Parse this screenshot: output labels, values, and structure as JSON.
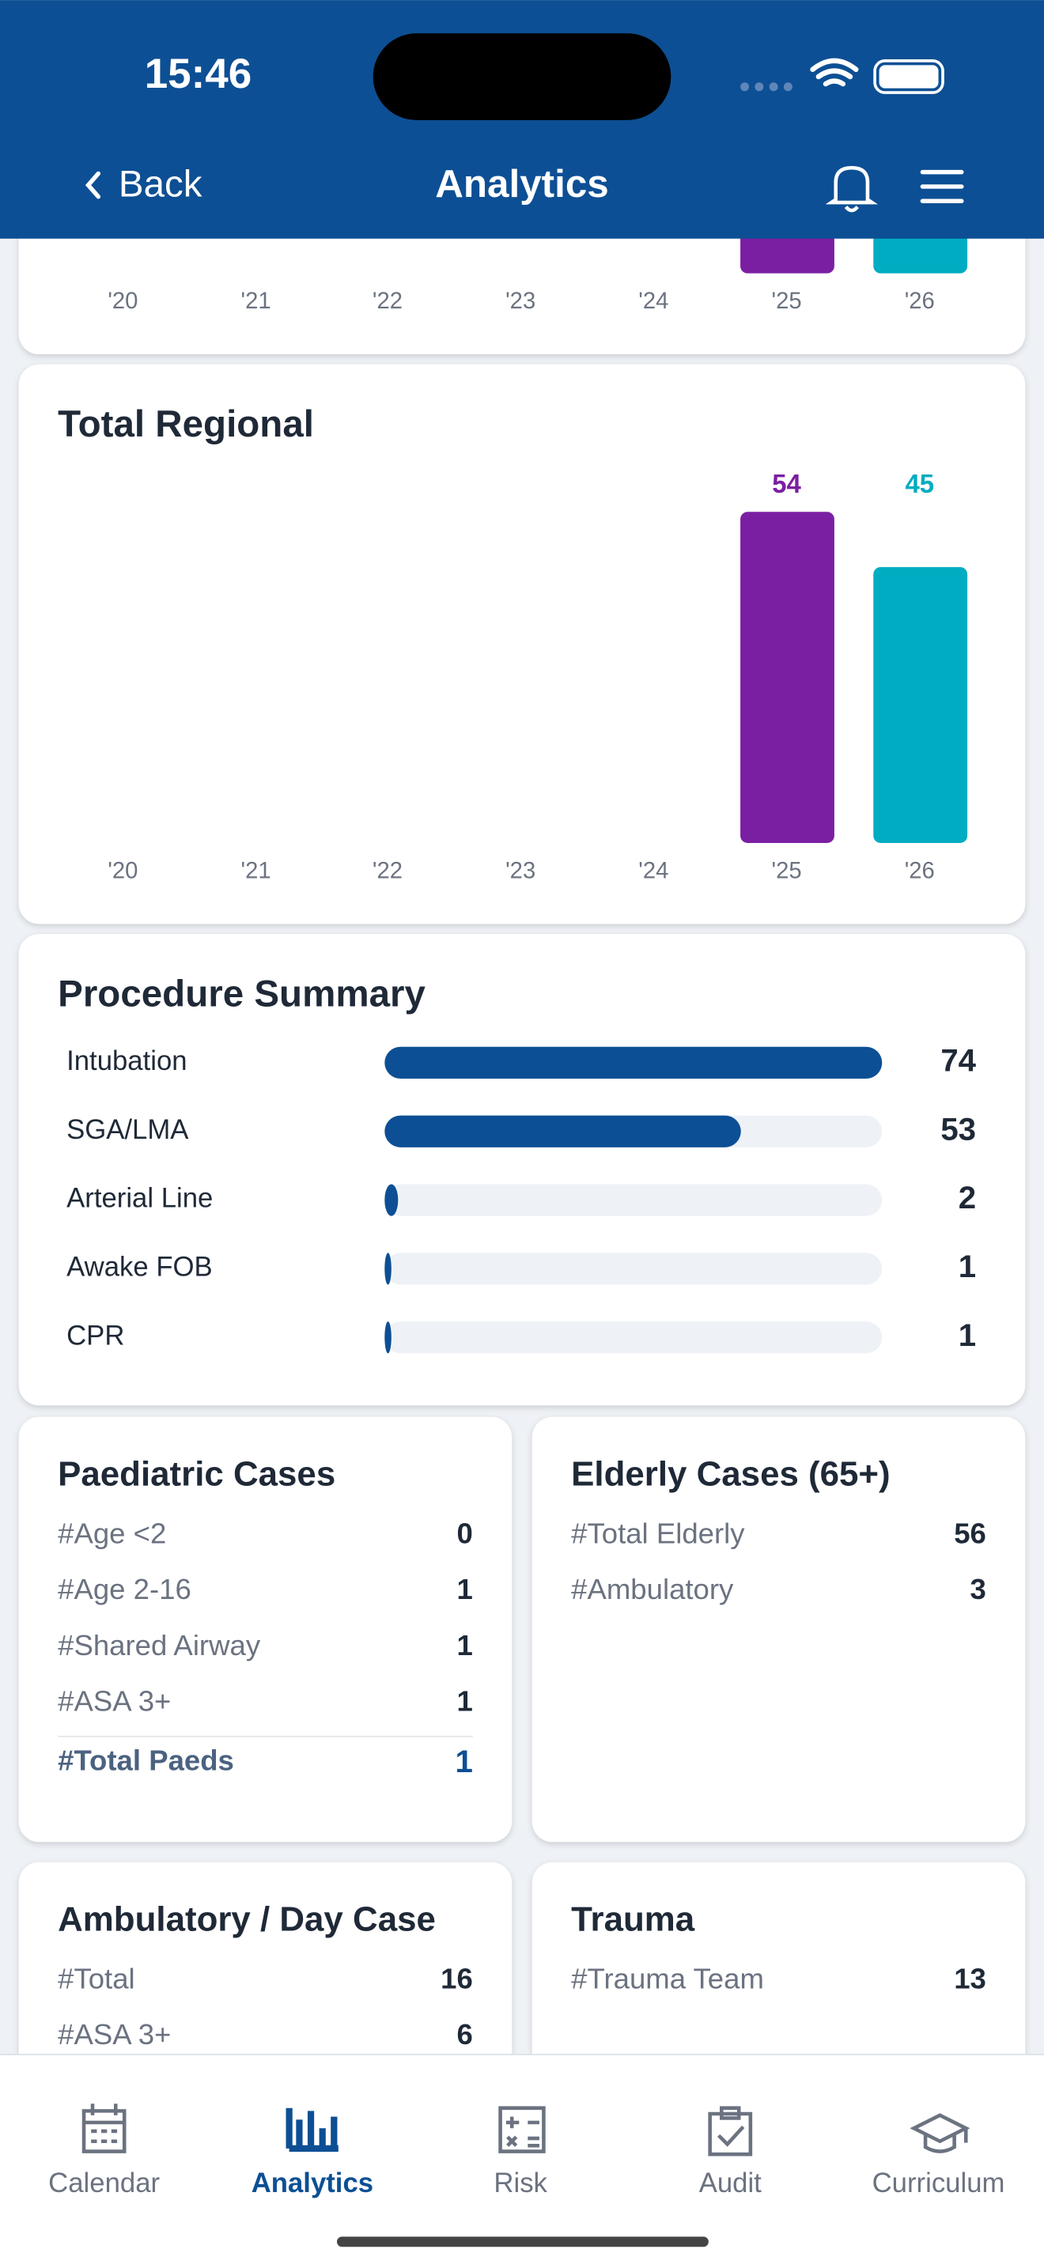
{
  "status_bar": {
    "time": "15:46"
  },
  "nav": {
    "back": "Back",
    "title": "Analytics"
  },
  "top_chart": {
    "categories": [
      "'20",
      "'21",
      "'22",
      "'23",
      "'24",
      "'25",
      "'26"
    ]
  },
  "total_regional": {
    "type": "bar",
    "title": "Total Regional",
    "categories": [
      "'20",
      "'21",
      "'22",
      "'23",
      "'24",
      "'25",
      "'26"
    ],
    "values": [
      null,
      null,
      null,
      null,
      null,
      54,
      45
    ],
    "colors": [
      "#7b1fa2",
      "#7b1fa2",
      "#7b1fa2",
      "#7b1fa2",
      "#7b1fa2",
      "#7b1fa2",
      "#00acc1"
    ]
  },
  "procedure_summary": {
    "title": "Procedure Summary",
    "color": "#0d4f94",
    "items": [
      {
        "label": "Intubation",
        "value": 74
      },
      {
        "label": "SGA/LMA",
        "value": 53
      },
      {
        "label": "Arterial Line",
        "value": 2
      },
      {
        "label": "Awake FOB",
        "value": 1
      },
      {
        "label": "CPR",
        "value": 1
      }
    ]
  },
  "paediatric": {
    "title": "Paediatric Cases",
    "rows": [
      {
        "label": "#Age <2",
        "value": 0
      },
      {
        "label": "#Age 2-16",
        "value": 1
      },
      {
        "label": "#Shared Airway",
        "value": 1
      },
      {
        "label": "#ASA 3+",
        "value": 1
      }
    ],
    "total": {
      "label": "#Total Paeds",
      "value": 1
    }
  },
  "elderly": {
    "title": "Elderly Cases (65+)",
    "rows": [
      {
        "label": "#Total Elderly",
        "value": 56
      },
      {
        "label": "#Ambulatory",
        "value": 3
      }
    ]
  },
  "ambulatory": {
    "title": "Ambulatory / Day Case",
    "rows": [
      {
        "label": "#Total",
        "value": 16
      },
      {
        "label": "#ASA 3+",
        "value": 6
      }
    ]
  },
  "trauma": {
    "title": "Trauma",
    "rows": [
      {
        "label": "#Trauma Team",
        "value": 13
      }
    ]
  },
  "tabs": [
    "Calendar",
    "Analytics",
    "Risk",
    "Audit",
    "Curriculum"
  ],
  "active_tab": 1
}
